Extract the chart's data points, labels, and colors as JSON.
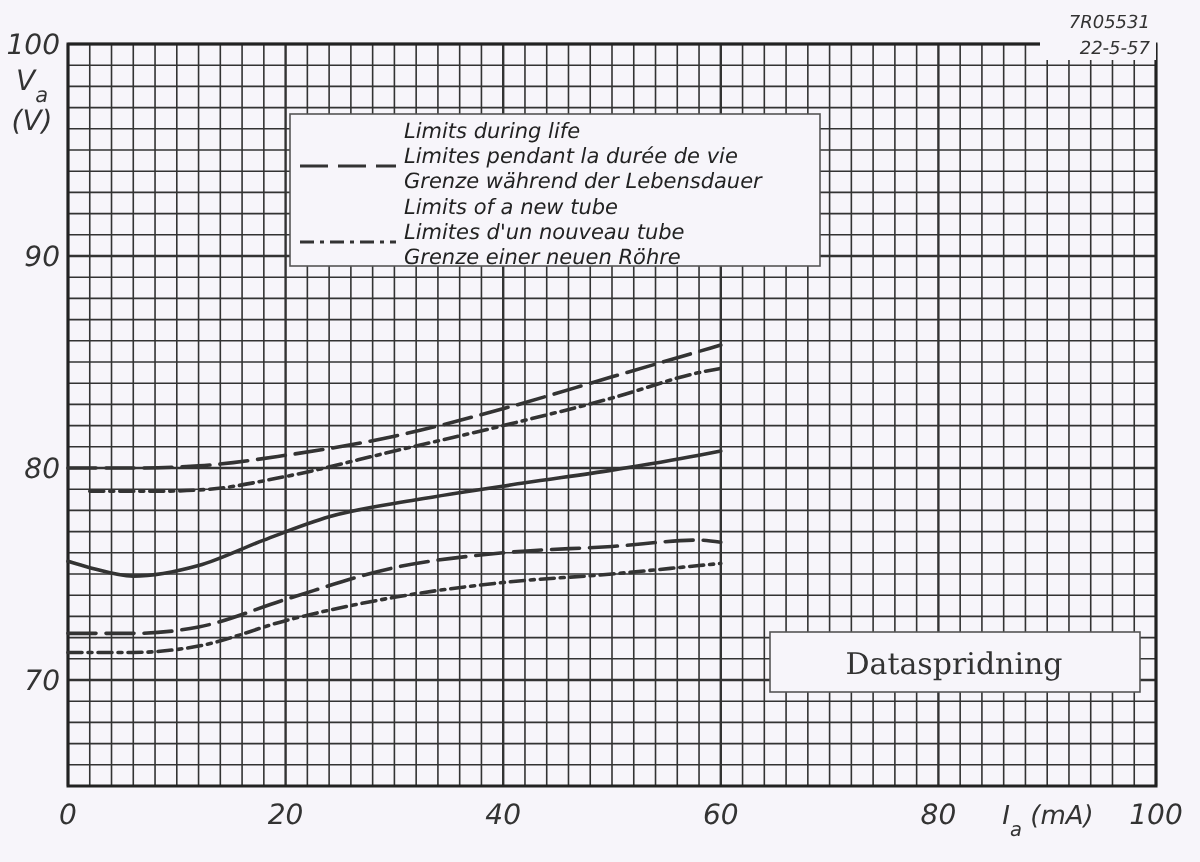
{
  "chart_data": {
    "type": "line",
    "xlabel": "I$_{a}$ (mA)",
    "ylabel": "V$_{a}$ (V)",
    "xlim": [
      0,
      100
    ],
    "ylim": [
      65,
      100
    ],
    "xticks": [
      0,
      {
        "value": 2,
        "label": null
      },
      {
        "value": 4,
        "label": null
      },
      {
        "value": 6,
        "label": null
      },
      {
        "value": 8,
        "label": null
      },
      {
        "value": 10,
        "label": null
      },
      {
        "value": 12,
        "label": null
      },
      {
        "value": 14,
        "label": null
      },
      {
        "value": 16,
        "label": null
      },
      {
        "value": 18,
        "label": null
      },
      20,
      {
        "value": 22,
        "label": null
      },
      {
        "value": 24,
        "label": null
      },
      {
        "value": 26,
        "label": null
      },
      {
        "value": 28,
        "label": null
      },
      {
        "value": 30,
        "label": null
      },
      {
        "value": 32,
        "label": null
      },
      {
        "value": 34,
        "label": null
      },
      {
        "value": 36,
        "label": null
      },
      {
        "value": 38,
        "label": null
      },
      40,
      {
        "value": 42,
        "label": null
      },
      {
        "value": 44,
        "label": null
      },
      {
        "value": 46,
        "label": null
      },
      {
        "value": 48,
        "label": null
      },
      {
        "value": 50,
        "label": null
      },
      {
        "value": 52,
        "label": null
      },
      {
        "value": 54,
        "label": null
      },
      {
        "value": 56,
        "label": null
      },
      {
        "value": 58,
        "label": null
      },
      60,
      {
        "value": 62,
        "label": null
      },
      {
        "value": 64,
        "label": null
      },
      {
        "value": 66,
        "label": null
      },
      {
        "value": 68,
        "label": null
      },
      {
        "value": 70,
        "label": null
      },
      {
        "value": 72,
        "label": null
      },
      {
        "value": 74,
        "label": null
      },
      {
        "value": 76,
        "label": null
      },
      {
        "value": 78,
        "label": null
      },
      80,
      {
        "value": 82,
        "label": null
      },
      {
        "value": 84,
        "label": null
      },
      {
        "value": 86,
        "label": null
      },
      {
        "value": 88,
        "label": null
      },
      {
        "value": 90,
        "label": null
      },
      {
        "value": 92,
        "label": null
      },
      {
        "value": 94,
        "label": null
      },
      {
        "value": 96,
        "label": null
      },
      {
        "value": 98,
        "label": null
      },
      100
    ],
    "yticks": [
      {
        "value": 65,
        "label": null
      },
      {
        "value": 66,
        "label": null
      },
      {
        "value": 67,
        "label": null
      },
      {
        "value": 68,
        "label": null
      },
      {
        "value": 69,
        "label": null
      },
      70,
      {
        "value": 71,
        "label": null
      },
      {
        "value": 72,
        "label": null
      },
      {
        "value": 73,
        "label": null
      },
      {
        "value": 74,
        "label": null
      },
      {
        "value": 75,
        "label": null
      },
      {
        "value": 76,
        "label": null
      },
      {
        "value": 77,
        "label": null
      },
      {
        "value": 78,
        "label": null
      },
      {
        "value": 79,
        "label": null
      },
      80,
      {
        "value": 81,
        "label": null
      },
      {
        "value": 82,
        "label": null
      },
      {
        "value": 83,
        "label": null
      },
      {
        "value": 84,
        "label": null
      },
      {
        "value": 85,
        "label": null
      },
      {
        "value": 86,
        "label": null
      },
      {
        "value": 87,
        "label": null
      },
      {
        "value": 88,
        "label": null
      },
      {
        "value": 89,
        "label": null
      },
      90,
      {
        "value": 91,
        "label": null
      },
      {
        "value": 92,
        "label": null
      },
      {
        "value": 93,
        "label": null
      },
      {
        "value": 94,
        "label": null
      },
      {
        "value": 95,
        "label": null
      },
      {
        "value": 96,
        "label": null
      },
      {
        "value": 97,
        "label": null
      },
      {
        "value": 98,
        "label": null
      },
      {
        "value": 99,
        "label": null
      },
      100
    ],
    "grid": true,
    "legend": "top",
    "marker": "none",
    "series": [
      {
        "name": "Limits during life\nLimites pendant la durée de vie\nGrenze während der Lebensdauer",
        "color": "#333333",
        "line_style": "dashed",
        "x": [
          0,
          6,
          12,
          20,
          30,
          40,
          50,
          58,
          60
        ],
        "values": [
          80,
          80,
          80.1,
          80.6,
          81.5,
          82.8,
          84.3,
          85.5,
          85.8
        ]
      },
      {
        "name": "Limits of a new tube\nLimites d'un nouveau tube\nGrenze einer neuen Röhre",
        "color": "#333333",
        "line_style": "dotted",
        "x": [
          2,
          8,
          13,
          20,
          30,
          40,
          50,
          58,
          60
        ],
        "values": [
          78.9,
          78.9,
          79,
          79.6,
          80.8,
          82,
          83.3,
          84.5,
          84.7
        ]
      },
      {
        "color": "#333333",
        "line_style": "solid",
        "x": [
          0,
          2,
          6,
          12,
          18,
          24,
          32,
          42,
          50,
          58,
          60
        ],
        "values": [
          75.6,
          75.3,
          74.9,
          75.4,
          76.6,
          77.7,
          78.5,
          79.3,
          79.9,
          80.6,
          80.8
        ]
      },
      {
        "color": "#333333",
        "line_style": "dashed",
        "x": [
          0,
          6,
          12,
          20,
          30,
          40,
          50,
          58,
          60
        ],
        "values": [
          72.2,
          72.2,
          72.5,
          73.8,
          75.3,
          76,
          76.3,
          76.6,
          76.5
        ]
      },
      {
        "color": "#333333",
        "line_style": "dotted",
        "x": [
          0,
          6,
          12,
          20,
          30,
          40,
          50,
          58,
          60
        ],
        "values": [
          71.3,
          71.3,
          71.6,
          72.8,
          73.9,
          74.6,
          75,
          75.4,
          75.5
        ]
      }
    ],
    "annotations": [
      "7R05531",
      "22-5-57",
      "Dataspridning"
    ]
  }
}
